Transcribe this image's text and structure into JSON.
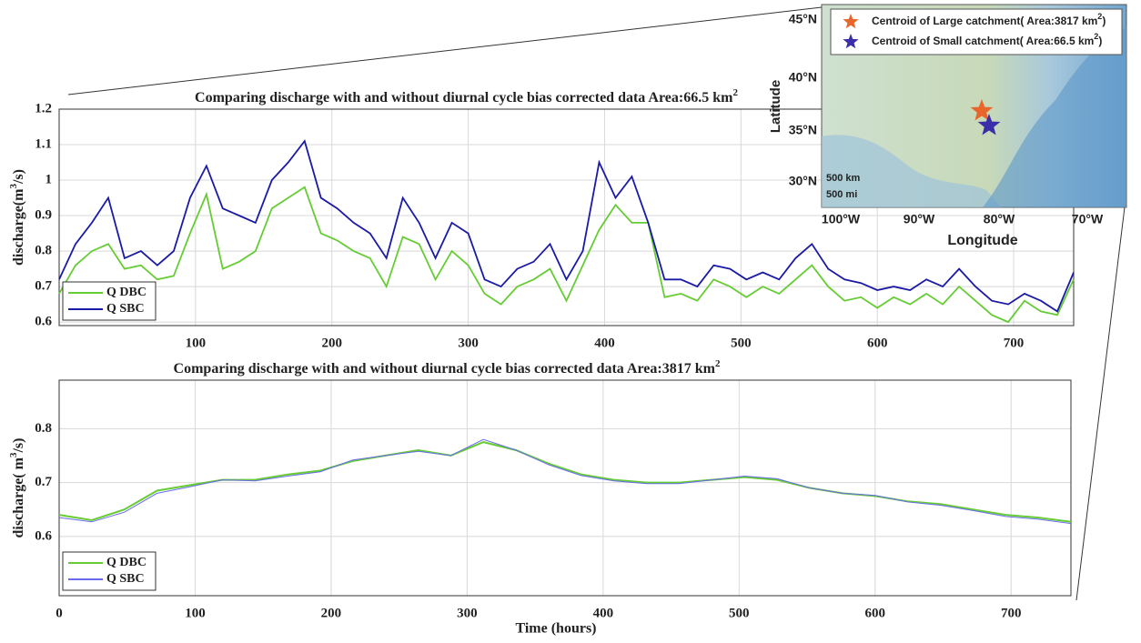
{
  "chart_data": [
    {
      "type": "line",
      "title": [
        "Comparing discharge with and without diurnal cycle bias corrected data Area:66.5 km",
        "2"
      ],
      "ylabel": [
        "discharge(m",
        "3",
        "/s)"
      ],
      "x": [
        0,
        12,
        24,
        36,
        48,
        60,
        72,
        84,
        96,
        108,
        120,
        132,
        144,
        156,
        168,
        180,
        192,
        204,
        216,
        228,
        240,
        252,
        264,
        276,
        288,
        300,
        312,
        324,
        336,
        348,
        360,
        372,
        384,
        396,
        408,
        420,
        432,
        444,
        456,
        468,
        480,
        492,
        504,
        516,
        528,
        540,
        552,
        564,
        576,
        588,
        600,
        612,
        624,
        636,
        648,
        660,
        672,
        684,
        696,
        708,
        720,
        732,
        744
      ],
      "series": [
        {
          "name": "Q DBC",
          "color": "#66cc33",
          "values": [
            0.68,
            0.76,
            0.8,
            0.82,
            0.75,
            0.76,
            0.72,
            0.73,
            0.85,
            0.96,
            0.75,
            0.77,
            0.8,
            0.92,
            0.95,
            0.98,
            0.85,
            0.83,
            0.8,
            0.78,
            0.7,
            0.84,
            0.82,
            0.72,
            0.8,
            0.76,
            0.68,
            0.65,
            0.7,
            0.72,
            0.75,
            0.66,
            0.76,
            0.86,
            0.93,
            0.88,
            0.88,
            0.67,
            0.68,
            0.66,
            0.72,
            0.7,
            0.67,
            0.7,
            0.68,
            0.72,
            0.76,
            0.7,
            0.66,
            0.67,
            0.64,
            0.67,
            0.65,
            0.68,
            0.65,
            0.7,
            0.66,
            0.62,
            0.6,
            0.66,
            0.63,
            0.62,
            0.72
          ]
        },
        {
          "name": "Q SBC",
          "color": "#1a1aa6",
          "values": [
            0.72,
            0.82,
            0.88,
            0.95,
            0.78,
            0.8,
            0.76,
            0.8,
            0.95,
            1.04,
            0.92,
            0.9,
            0.88,
            1.0,
            1.05,
            1.11,
            0.95,
            0.92,
            0.88,
            0.85,
            0.78,
            0.95,
            0.88,
            0.78,
            0.88,
            0.85,
            0.72,
            0.7,
            0.75,
            0.77,
            0.82,
            0.72,
            0.8,
            1.05,
            0.95,
            1.01,
            0.88,
            0.72,
            0.72,
            0.7,
            0.76,
            0.75,
            0.72,
            0.74,
            0.72,
            0.78,
            0.82,
            0.75,
            0.72,
            0.71,
            0.69,
            0.7,
            0.69,
            0.72,
            0.7,
            0.75,
            0.7,
            0.66,
            0.65,
            0.68,
            0.66,
            0.63,
            0.74
          ]
        }
      ],
      "xlim": [
        0,
        744
      ],
      "xticks": [
        100,
        200,
        300,
        400,
        500,
        600,
        700
      ],
      "ylim": [
        0.59,
        1.2
      ],
      "yticks": [
        0.6,
        0.7,
        0.8,
        0.9,
        1,
        1.1,
        1.2
      ],
      "grid": true,
      "legend": "lower left"
    },
    {
      "type": "line",
      "title": [
        "Comparing discharge with and without diurnal cycle bias corrected data Area:3817 km",
        "2"
      ],
      "ylabel": [
        "discharge( m",
        "3",
        "/s)"
      ],
      "xlabel": "Time (hours)",
      "x": [
        0,
        24,
        48,
        72,
        96,
        120,
        144,
        168,
        192,
        216,
        240,
        264,
        288,
        312,
        336,
        360,
        384,
        408,
        432,
        456,
        480,
        504,
        528,
        552,
        576,
        600,
        624,
        648,
        672,
        696,
        720,
        744
      ],
      "series": [
        {
          "name": "Q DBC",
          "color": "#66cc33",
          "values": [
            0.64,
            0.63,
            0.65,
            0.685,
            0.695,
            0.705,
            0.705,
            0.715,
            0.722,
            0.74,
            0.75,
            0.76,
            0.75,
            0.775,
            0.76,
            0.735,
            0.715,
            0.705,
            0.7,
            0.7,
            0.705,
            0.71,
            0.705,
            0.69,
            0.68,
            0.675,
            0.665,
            0.66,
            0.65,
            0.64,
            0.635,
            0.627
          ]
        },
        {
          "name": "Q SBC",
          "color": "#6a6af0",
          "values": [
            0.635,
            0.627,
            0.645,
            0.68,
            0.692,
            0.705,
            0.703,
            0.712,
            0.72,
            0.742,
            0.75,
            0.758,
            0.75,
            0.78,
            0.76,
            0.733,
            0.713,
            0.703,
            0.698,
            0.698,
            0.705,
            0.712,
            0.707,
            0.69,
            0.68,
            0.676,
            0.664,
            0.658,
            0.648,
            0.637,
            0.632,
            0.624
          ]
        }
      ],
      "xlim": [
        0,
        744
      ],
      "xticks": [
        0,
        100,
        200,
        300,
        400,
        500,
        600,
        700
      ],
      "ylim": [
        0.49,
        0.89
      ],
      "yticks": [
        0.6,
        0.7,
        0.8
      ],
      "grid": true,
      "legend": "lower left"
    }
  ],
  "map": {
    "lat_ticks": [
      "45°N",
      "40°N",
      "35°N",
      "30°N"
    ],
    "lon_ticks": [
      "100°W",
      "90°W",
      "80°W",
      "70°W"
    ],
    "xlabel": "Longitude",
    "ylabel": "Latitude",
    "scale": [
      "500 km",
      "500 mi"
    ],
    "legend": [
      {
        "label": [
          "Centroid of Large catchment( Area:3817 km",
          "2",
          ")"
        ],
        "color": "#e8662a"
      },
      {
        "label": [
          "Centroid of Small catchment( Area:66.5 km",
          "2",
          ")"
        ],
        "color": "#3b2ea8"
      }
    ]
  }
}
